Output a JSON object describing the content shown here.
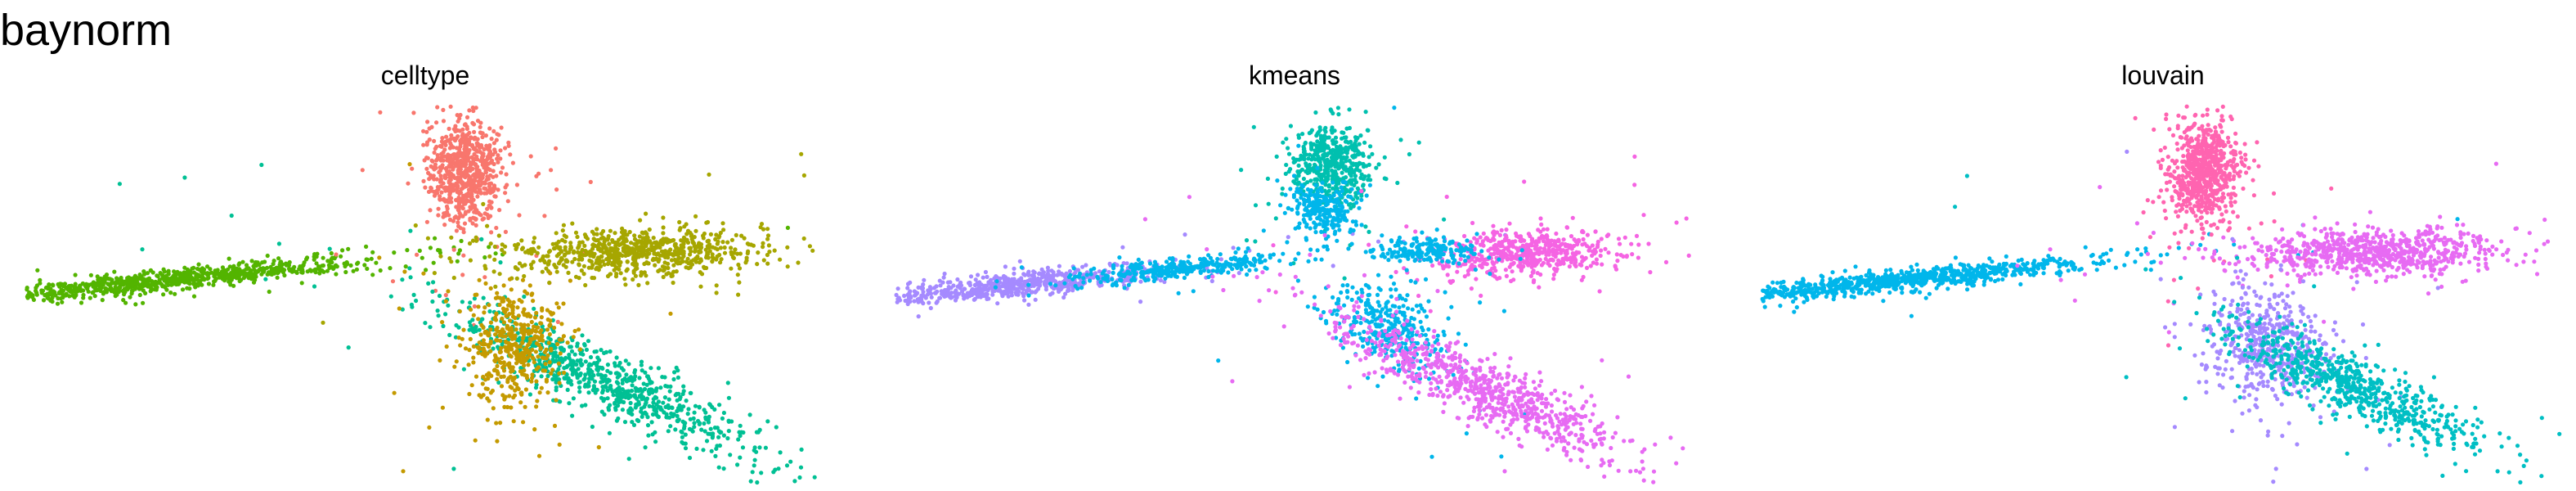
{
  "title": "baynorm",
  "chart_data": [
    {
      "type": "scatter",
      "title": "celltype",
      "grid": false,
      "axes": false,
      "xlim": [
        -10,
        10
      ],
      "ylim": [
        -8,
        8
      ],
      "clusters": [
        {
          "color": "#53B400",
          "cx": -6.5,
          "cy": 0.6,
          "sx": 2.6,
          "sy": 0.22,
          "slope": 0.17,
          "n": 900
        },
        {
          "color": "#F8766D",
          "cx": 1.0,
          "cy": 5.2,
          "sx": 0.45,
          "sy": 1.1,
          "slope": 0.0,
          "n": 700
        },
        {
          "color": "#A58AFF",
          "cx": 0,
          "cy": 0,
          "sx": 0,
          "sy": 0,
          "slope": 0,
          "n": 0
        },
        {
          "color": "#A6A600",
          "cx": 5.2,
          "cy": 1.8,
          "sx": 1.6,
          "sy": 0.5,
          "slope": 0.05,
          "n": 750
        },
        {
          "color": "#00C094",
          "cx": 4.4,
          "cy": -3.6,
          "sx": 1.9,
          "sy": 0.65,
          "slope": -0.75,
          "n": 800
        },
        {
          "color": "#C49A00",
          "cx": 2.2,
          "cy": -2.2,
          "sx": 0.6,
          "sy": 1.3,
          "slope": 0.0,
          "n": 450
        }
      ]
    },
    {
      "type": "scatter",
      "title": "kmeans",
      "grid": false,
      "axes": false,
      "xlim": [
        -10,
        10
      ],
      "ylim": [
        -8,
        8
      ],
      "clusters": [
        {
          "color": "#A58AFF",
          "cx": -7.0,
          "cy": 0.4,
          "sx": 2.0,
          "sy": 0.25,
          "slope": 0.17,
          "n": 700
        },
        {
          "color": "#00B6EB",
          "cx": -3.0,
          "cy": 1.1,
          "sx": 1.3,
          "sy": 0.2,
          "slope": 0.17,
          "n": 350
        },
        {
          "color": "#00C0AF",
          "cx": 1.0,
          "cy": 5.6,
          "sx": 0.5,
          "sy": 0.8,
          "slope": 0.0,
          "n": 500
        },
        {
          "color": "#00B6EB",
          "cx": 0.7,
          "cy": 3.6,
          "sx": 0.4,
          "sy": 0.6,
          "slope": 0.0,
          "n": 250
        },
        {
          "color": "#F564E3",
          "cx": 5.8,
          "cy": 1.8,
          "sx": 1.2,
          "sy": 0.5,
          "slope": 0.05,
          "n": 550
        },
        {
          "color": "#00B6EB",
          "cx": 3.3,
          "cy": 1.9,
          "sx": 0.6,
          "sy": 0.3,
          "slope": 0.05,
          "n": 200
        },
        {
          "color": "#00B6EB",
          "cx": 2.4,
          "cy": -1.4,
          "sx": 0.7,
          "sy": 0.9,
          "slope": -0.5,
          "n": 350
        },
        {
          "color": "#E76BF3",
          "cx": 4.6,
          "cy": -3.9,
          "sx": 1.8,
          "sy": 0.7,
          "slope": -0.75,
          "n": 800
        }
      ]
    },
    {
      "type": "scatter",
      "title": "louvain",
      "grid": false,
      "axes": false,
      "xlim": [
        -10,
        10
      ],
      "ylim": [
        -8,
        8
      ],
      "clusters": [
        {
          "color": "#00B6EB",
          "cx": -6.5,
          "cy": 0.6,
          "sx": 2.6,
          "sy": 0.22,
          "slope": 0.17,
          "n": 900
        },
        {
          "color": "#FF64B0",
          "cx": 1.0,
          "cy": 5.2,
          "sx": 0.45,
          "sy": 1.1,
          "slope": 0.0,
          "n": 700
        },
        {
          "color": "#E76BF3",
          "cx": 5.2,
          "cy": 1.8,
          "sx": 1.6,
          "sy": 0.5,
          "slope": 0.05,
          "n": 750
        },
        {
          "color": "#A58AFF",
          "cx": 2.6,
          "cy": -2.2,
          "sx": 0.8,
          "sy": 1.2,
          "slope": -0.4,
          "n": 500
        },
        {
          "color": "#00BFC4",
          "cx": 4.8,
          "cy": -3.9,
          "sx": 1.6,
          "sy": 0.65,
          "slope": -0.75,
          "n": 700
        }
      ]
    }
  ]
}
